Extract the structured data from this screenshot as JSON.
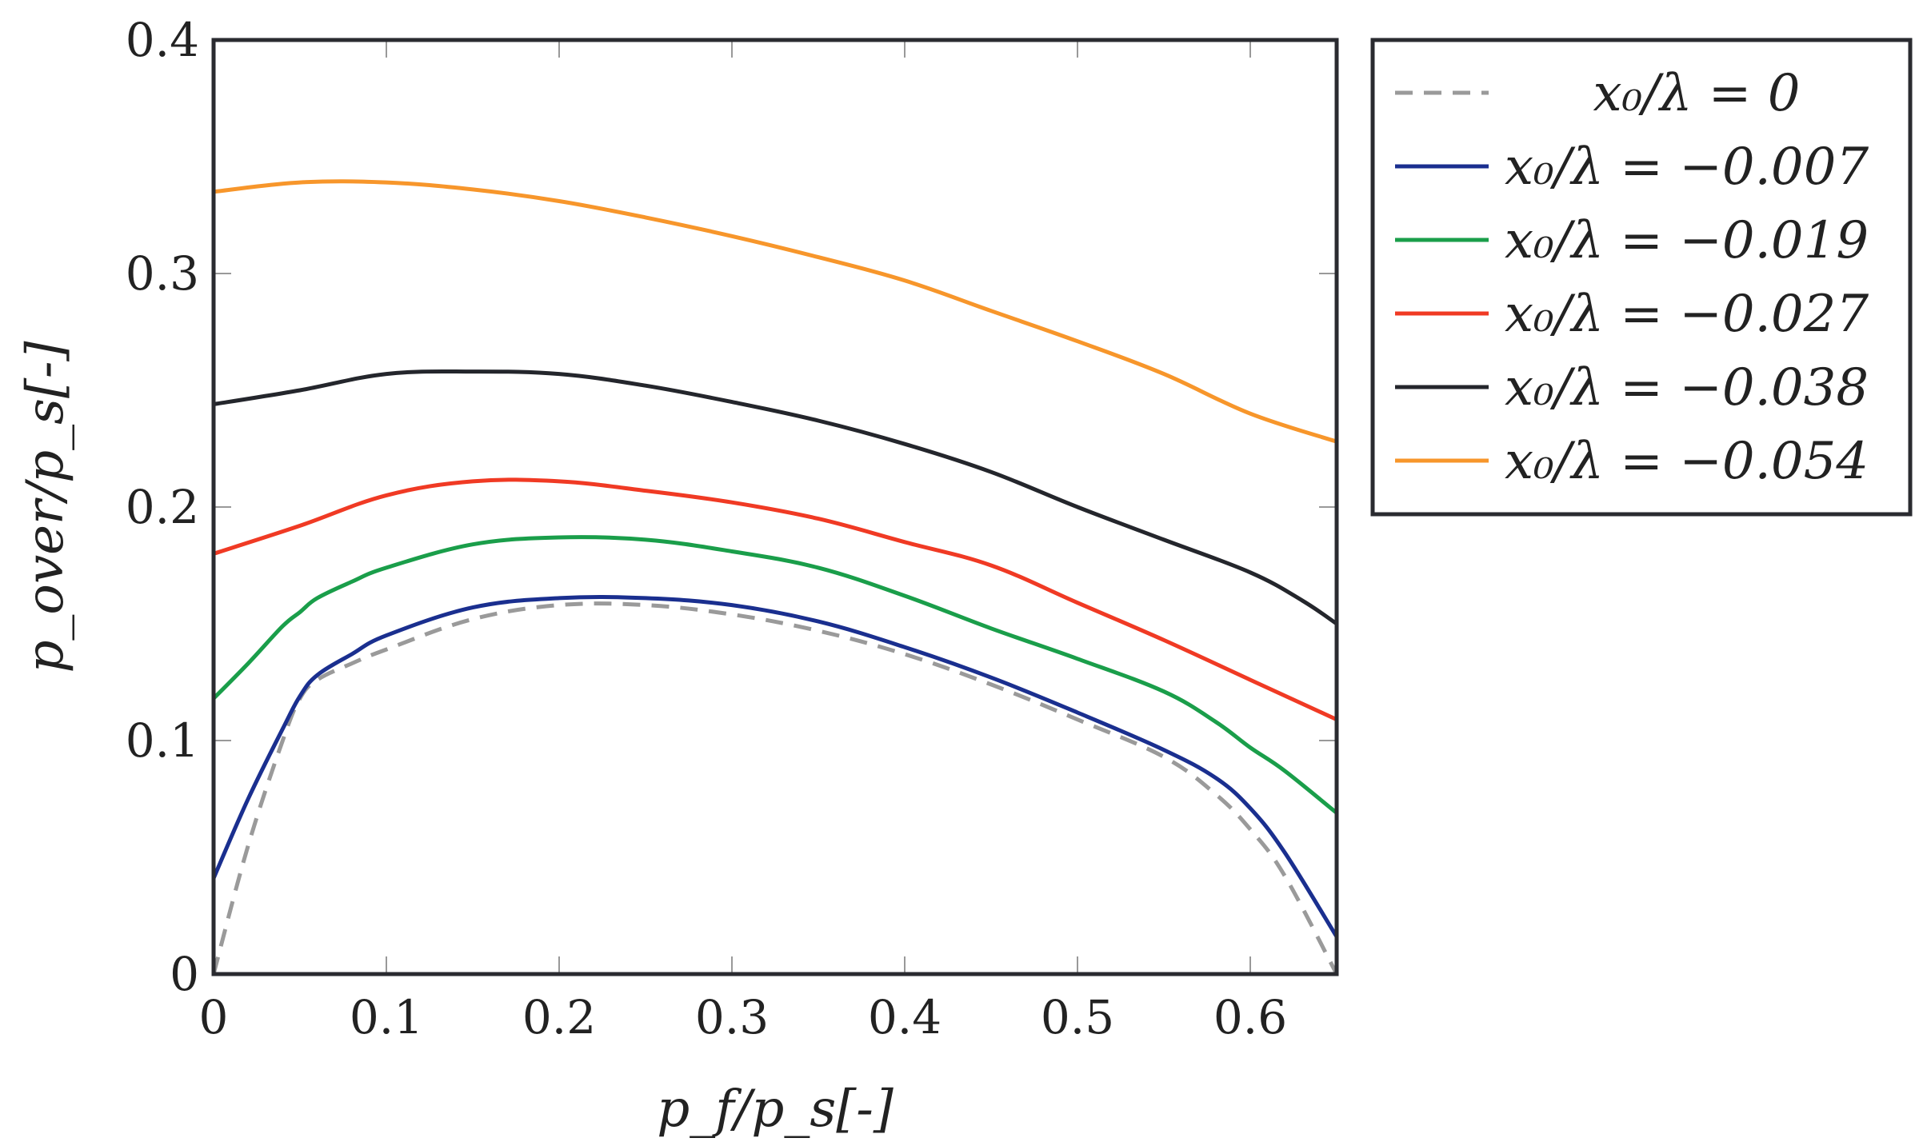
{
  "chart_data": {
    "type": "line",
    "title": "",
    "xlabel": "p_f/p_s[-]",
    "ylabel": "p_over/p_s[-]",
    "xlim": [
      0,
      0.65
    ],
    "ylim": [
      0,
      0.4
    ],
    "xticks": [
      0,
      0.1,
      0.2,
      0.3,
      0.4,
      0.5,
      0.6
    ],
    "yticks": [
      0,
      0.1,
      0.2,
      0.3,
      0.4
    ],
    "xtick_labels": [
      "0",
      "0.1",
      "0.2",
      "0.3",
      "0.4",
      "0.5",
      "0.6"
    ],
    "ytick_labels": [
      "0",
      "0.1",
      "0.2",
      "0.3",
      "0.4"
    ],
    "grid": false,
    "legend_position": "outside-top-right",
    "series": [
      {
        "name": "x0/λ = 0",
        "legend_label": "x₀/λ = 0",
        "color": "#9a9a9a",
        "dashed": true,
        "x": [
          0,
          0.02,
          0.04,
          0.05,
          0.06,
          0.08,
          0.1,
          0.15,
          0.2,
          0.25,
          0.3,
          0.35,
          0.4,
          0.45,
          0.5,
          0.55,
          0.58,
          0.6,
          0.62,
          0.65
        ],
        "y": [
          0,
          0.055,
          0.1,
          0.118,
          0.126,
          0.133,
          0.139,
          0.152,
          0.158,
          0.158,
          0.154,
          0.147,
          0.137,
          0.124,
          0.109,
          0.093,
          0.077,
          0.062,
          0.042,
          0
        ]
      },
      {
        "name": "x0/λ = −0.007",
        "legend_label": "x₀/λ = −0.007",
        "color": "#1a2f8f",
        "dashed": false,
        "x": [
          0,
          0.02,
          0.04,
          0.05,
          0.06,
          0.08,
          0.1,
          0.15,
          0.2,
          0.25,
          0.3,
          0.35,
          0.4,
          0.45,
          0.5,
          0.55,
          0.58,
          0.6,
          0.62,
          0.65
        ],
        "y": [
          0.041,
          0.075,
          0.105,
          0.119,
          0.128,
          0.137,
          0.145,
          0.157,
          0.161,
          0.161,
          0.158,
          0.151,
          0.14,
          0.127,
          0.112,
          0.096,
          0.084,
          0.071,
          0.052,
          0.016
        ]
      },
      {
        "name": "x0/λ = −0.019",
        "legend_label": "x₀/λ = −0.019",
        "color": "#1a9e4a",
        "dashed": false,
        "x": [
          0,
          0.02,
          0.04,
          0.05,
          0.06,
          0.08,
          0.1,
          0.15,
          0.2,
          0.25,
          0.3,
          0.35,
          0.4,
          0.45,
          0.5,
          0.55,
          0.58,
          0.6,
          0.62,
          0.65
        ],
        "y": [
          0.118,
          0.133,
          0.149,
          0.155,
          0.161,
          0.168,
          0.174,
          0.184,
          0.187,
          0.186,
          0.181,
          0.174,
          0.162,
          0.148,
          0.135,
          0.121,
          0.108,
          0.097,
          0.087,
          0.069
        ]
      },
      {
        "name": "x0/λ = −0.027",
        "legend_label": "x₀/λ = −0.027",
        "color": "#f03a24",
        "dashed": false,
        "x": [
          0,
          0.05,
          0.1,
          0.15,
          0.2,
          0.25,
          0.3,
          0.35,
          0.4,
          0.45,
          0.5,
          0.55,
          0.6,
          0.65
        ],
        "y": [
          0.18,
          0.192,
          0.205,
          0.211,
          0.211,
          0.207,
          0.202,
          0.195,
          0.185,
          0.175,
          0.159,
          0.143,
          0.126,
          0.109
        ]
      },
      {
        "name": "x0/λ = −0.038",
        "legend_label": "x₀/λ = −0.038",
        "color": "#24262c",
        "dashed": false,
        "x": [
          0,
          0.05,
          0.1,
          0.15,
          0.2,
          0.25,
          0.3,
          0.35,
          0.4,
          0.45,
          0.5,
          0.55,
          0.6,
          0.63,
          0.65
        ],
        "y": [
          0.244,
          0.25,
          0.257,
          0.258,
          0.257,
          0.252,
          0.245,
          0.237,
          0.227,
          0.215,
          0.2,
          0.186,
          0.172,
          0.16,
          0.15
        ]
      },
      {
        "name": "x0/λ = −0.054",
        "legend_label": "x₀/λ = −0.054",
        "color": "#f7962b",
        "dashed": false,
        "x": [
          0,
          0.05,
          0.1,
          0.15,
          0.2,
          0.25,
          0.3,
          0.35,
          0.4,
          0.45,
          0.5,
          0.55,
          0.6,
          0.65
        ],
        "y": [
          0.335,
          0.339,
          0.339,
          0.336,
          0.331,
          0.324,
          0.316,
          0.307,
          0.297,
          0.284,
          0.271,
          0.257,
          0.24,
          0.228
        ]
      }
    ]
  }
}
